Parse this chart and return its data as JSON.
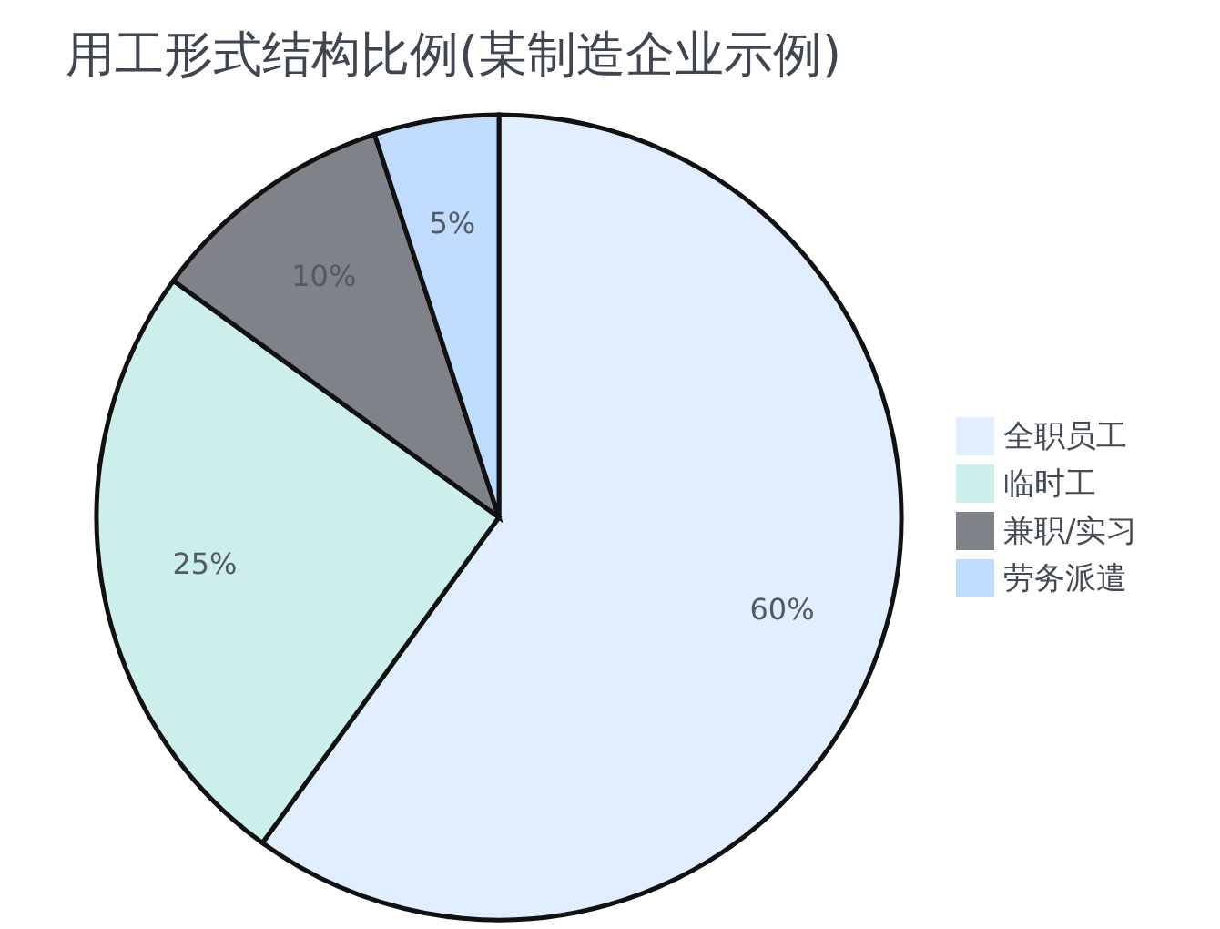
{
  "chart_data": {
    "type": "pie",
    "title": "用工形式结构比例(某制造企业示例)",
    "categories": [
      "全职员工",
      "临时工",
      "兼职/实习",
      "劳务派遣"
    ],
    "values": [
      60,
      25,
      10,
      5
    ],
    "colors": [
      "#e0eeff",
      "#cdefeb",
      "#7f8389",
      "#bfdbfd"
    ],
    "value_labels": [
      "60%",
      "25%",
      "10%",
      "5%"
    ],
    "legend": "right"
  }
}
